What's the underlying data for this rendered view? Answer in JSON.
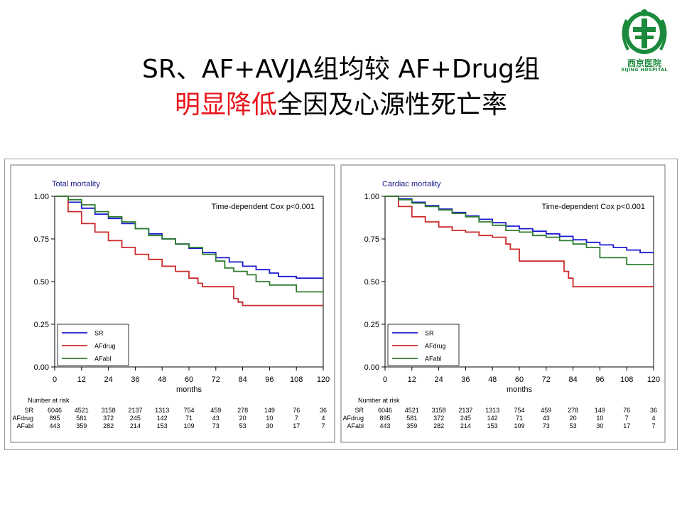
{
  "slide": {
    "title_line1": "SR、AF+AVJA组均较 AF+Drug组",
    "title_line2_red": "明显降低",
    "title_line2_rest": "全因及心源性死亡率",
    "logo_cn": "西京医院",
    "logo_en": "XIJING HOSPITAL"
  },
  "colors": {
    "SR": "#1a1ad0",
    "AFdrug": "#cc2a2a",
    "AFabl": "#2e7d2e",
    "title_red": "#e8141c",
    "logo_green": "#1b8a3c"
  },
  "chart_data": [
    {
      "type": "line",
      "title": "Total mortality",
      "annotation": "Time-dependent Cox p<0.001",
      "xlabel": "months",
      "ylabel": "",
      "xlim": [
        0,
        120
      ],
      "ylim": [
        0,
        1
      ],
      "xticks": [
        "0",
        "12",
        "24",
        "36",
        "48",
        "60",
        "72",
        "84",
        "96",
        "108",
        "120"
      ],
      "yticks": [
        "0.00",
        "0.25",
        "0.50",
        "0.75",
        "1.00"
      ],
      "legend_position": "bottom-left",
      "series": [
        {
          "name": "SR",
          "x": [
            0,
            6,
            12,
            18,
            24,
            30,
            36,
            42,
            48,
            54,
            60,
            66,
            72,
            78,
            84,
            90,
            96,
            100,
            108,
            114,
            120
          ],
          "y": [
            1.0,
            0.965,
            0.93,
            0.895,
            0.87,
            0.84,
            0.81,
            0.78,
            0.75,
            0.72,
            0.695,
            0.67,
            0.64,
            0.615,
            0.59,
            0.57,
            0.55,
            0.53,
            0.52,
            0.52,
            0.52
          ]
        },
        {
          "name": "AFdrug",
          "x": [
            0,
            6,
            12,
            18,
            24,
            30,
            36,
            42,
            48,
            54,
            60,
            64,
            66,
            72,
            78,
            80,
            82,
            84,
            90,
            96,
            108,
            120
          ],
          "y": [
            1.0,
            0.91,
            0.84,
            0.79,
            0.74,
            0.7,
            0.66,
            0.63,
            0.59,
            0.56,
            0.52,
            0.49,
            0.47,
            0.47,
            0.47,
            0.4,
            0.38,
            0.36,
            0.36,
            0.36,
            0.36,
            0.36
          ]
        },
        {
          "name": "AFabl",
          "x": [
            0,
            6,
            12,
            18,
            24,
            30,
            36,
            42,
            48,
            54,
            60,
            66,
            72,
            76,
            80,
            86,
            90,
            96,
            102,
            108,
            114,
            120
          ],
          "y": [
            1.0,
            0.98,
            0.95,
            0.91,
            0.88,
            0.85,
            0.81,
            0.77,
            0.75,
            0.72,
            0.7,
            0.66,
            0.62,
            0.58,
            0.56,
            0.54,
            0.5,
            0.48,
            0.48,
            0.44,
            0.44,
            0.44
          ]
        }
      ],
      "risk_table": {
        "header": "Number at risk",
        "rows": [
          {
            "label": "SR",
            "values": [
              "6046",
              "4521",
              "3158",
              "2137",
              "1313",
              "754",
              "459",
              "278",
              "149",
              "76",
              "36"
            ]
          },
          {
            "label": "AFdrug",
            "values": [
              "895",
              "581",
              "372",
              "245",
              "142",
              "71",
              "43",
              "20",
              "10",
              "7",
              "4"
            ]
          },
          {
            "label": "AFabl",
            "values": [
              "443",
              "359",
              "282",
              "214",
              "153",
              "109",
              "73",
              "53",
              "30",
              "17",
              "7"
            ]
          }
        ]
      }
    },
    {
      "type": "line",
      "title": "Cardiac mortality",
      "annotation": "Time-dependent Cox p<0.001",
      "xlabel": "months",
      "ylabel": "",
      "xlim": [
        0,
        120
      ],
      "ylim": [
        0,
        1
      ],
      "xticks": [
        "0",
        "12",
        "24",
        "36",
        "48",
        "60",
        "72",
        "84",
        "96",
        "108",
        "120"
      ],
      "yticks": [
        "0.00",
        "0.25",
        "0.50",
        "0.75",
        "1.00"
      ],
      "legend_position": "bottom-left",
      "series": [
        {
          "name": "SR",
          "x": [
            0,
            6,
            12,
            18,
            24,
            30,
            36,
            42,
            48,
            54,
            60,
            66,
            72,
            78,
            84,
            90,
            96,
            102,
            108,
            114,
            120
          ],
          "y": [
            1.0,
            0.985,
            0.965,
            0.945,
            0.925,
            0.905,
            0.885,
            0.865,
            0.845,
            0.825,
            0.81,
            0.795,
            0.78,
            0.765,
            0.745,
            0.73,
            0.715,
            0.7,
            0.685,
            0.67,
            0.67
          ]
        },
        {
          "name": "AFdrug",
          "x": [
            0,
            6,
            12,
            18,
            24,
            30,
            36,
            42,
            48,
            54,
            56,
            60,
            66,
            72,
            78,
            80,
            82,
            84,
            90,
            96,
            108,
            120
          ],
          "y": [
            1.0,
            0.94,
            0.88,
            0.85,
            0.82,
            0.8,
            0.79,
            0.77,
            0.76,
            0.72,
            0.69,
            0.62,
            0.62,
            0.62,
            0.62,
            0.56,
            0.52,
            0.47,
            0.47,
            0.47,
            0.47,
            0.47
          ]
        },
        {
          "name": "AFabl",
          "x": [
            0,
            6,
            12,
            18,
            24,
            30,
            36,
            42,
            48,
            54,
            60,
            66,
            72,
            78,
            84,
            90,
            96,
            102,
            108,
            114,
            120
          ],
          "y": [
            1.0,
            0.98,
            0.96,
            0.94,
            0.92,
            0.9,
            0.88,
            0.85,
            0.83,
            0.8,
            0.79,
            0.77,
            0.76,
            0.74,
            0.72,
            0.7,
            0.64,
            0.64,
            0.6,
            0.6,
            0.6
          ]
        }
      ],
      "risk_table": {
        "header": "Number at risk",
        "rows": [
          {
            "label": "SR",
            "values": [
              "6046",
              "4521",
              "3158",
              "2137",
              "1313",
              "754",
              "459",
              "278",
              "149",
              "76",
              "36"
            ]
          },
          {
            "label": "AFdrug",
            "values": [
              "895",
              "581",
              "372",
              "245",
              "142",
              "71",
              "43",
              "20",
              "10",
              "7",
              "4"
            ]
          },
          {
            "label": "AFabl",
            "values": [
              "443",
              "359",
              "282",
              "214",
              "153",
              "109",
              "73",
              "53",
              "30",
              "17",
              "7"
            ]
          }
        ]
      }
    }
  ]
}
